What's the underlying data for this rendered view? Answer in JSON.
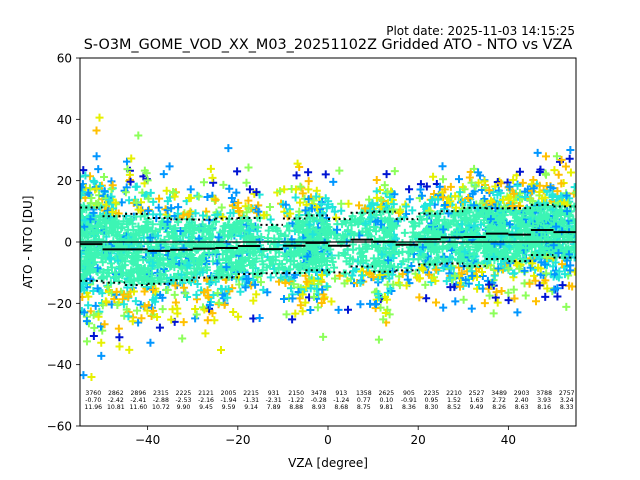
{
  "chart_data": {
    "type": "scatter",
    "title": "S-O3M_GOME_VOD_XX_M03_20251102Z Gridded ATO - NTO vs VZA",
    "plot_date": "Plot date: 2025-11-03 14:15:25",
    "xlabel": "VZA [degree]",
    "ylabel": "ATO - NTO [DU]",
    "xlim": [
      -55,
      55
    ],
    "ylim": [
      -60,
      60
    ],
    "xticks": [
      -40,
      -20,
      0,
      20,
      40
    ],
    "xtick_labels": [
      "−40",
      "−20",
      "0",
      "20",
      "40"
    ],
    "yticks": [
      -60,
      -40,
      -20,
      0,
      20,
      40,
      60
    ],
    "ytick_labels": [
      "−60",
      "−40",
      "−20",
      "0",
      "20",
      "40",
      "60"
    ],
    "grid": false,
    "marker": "+",
    "zero_line": 0,
    "bin_width": 5,
    "bins": {
      "centers": [
        -52.5,
        -47.5,
        -42.5,
        -37.5,
        -32.5,
        -27.5,
        -22.5,
        -17.5,
        -12.5,
        -7.5,
        -2.5,
        2.5,
        7.5,
        12.5,
        17.5,
        22.5,
        27.5,
        32.5,
        37.5,
        42.5,
        47.5,
        52.5
      ],
      "counts": [
        "3760",
        "2862",
        "2896",
        "2315",
        "2225",
        "2121",
        "2005",
        "2215",
        "931",
        "2150",
        "3478",
        "913",
        "1358",
        "2625",
        "905",
        "2235",
        "2210",
        "2527",
        "3489",
        "2903",
        "3788",
        "2757"
      ],
      "means": [
        "-0.70",
        "-2.42",
        "-2.41",
        "-2.88",
        "-2.53",
        "-2.16",
        "-1.94",
        "-1.31",
        "-2.31",
        "-1.22",
        "-0.28",
        "-1.24",
        "0.77",
        "0.10",
        "-0.91",
        "0.95",
        "1.52",
        "1.63",
        "2.72",
        "2.40",
        "3.93",
        "3.24"
      ],
      "stds": [
        "11.96",
        "10.81",
        "11.60",
        "10.72",
        "9.90",
        "9.45",
        "9.59",
        "9.14",
        "7.89",
        "8.88",
        "8.93",
        "8.68",
        "8.75",
        "9.81",
        "8.36",
        "8.30",
        "8.52",
        "9.49",
        "8.26",
        "8.63",
        "8.16",
        "8.33"
      ]
    },
    "series_colors": [
      "#3cf5b4",
      "#3cf5b4",
      "#3cf5b4",
      "#20e6dc",
      "#20e6dc",
      "#e6f000",
      "#ffc000",
      "#0096ff",
      "#8cff5a",
      "#0014d2"
    ],
    "mean_line_color": "#000000",
    "std_line_color": "#000000"
  }
}
